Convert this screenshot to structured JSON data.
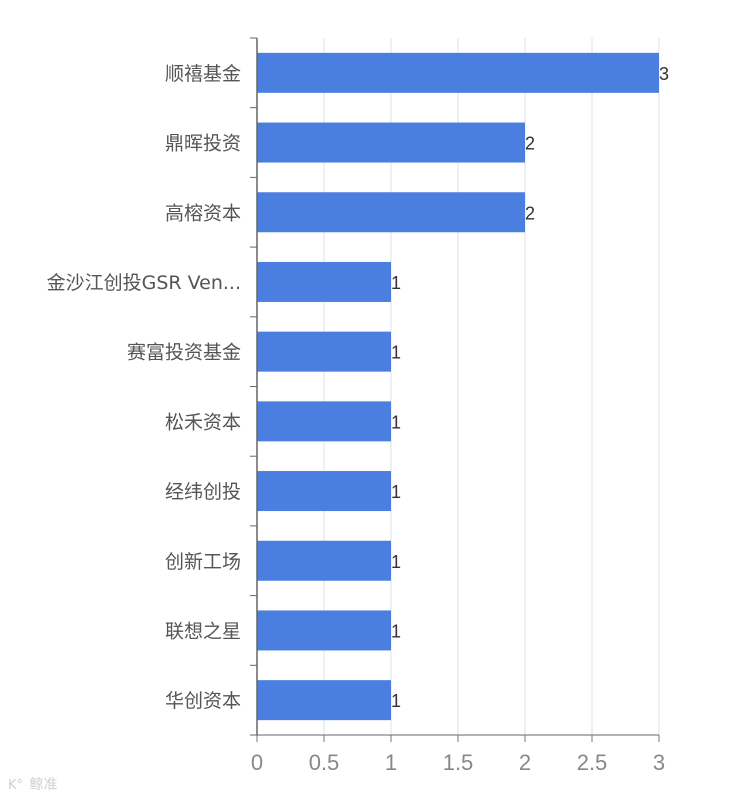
{
  "chart_data": {
    "type": "bar",
    "orientation": "horizontal",
    "categories": [
      "顺禧基金",
      "鼎晖投资",
      "高榕资本",
      "金沙江创投GSR Ven...",
      "赛富投资基金",
      "松禾资本",
      "经纬创投",
      "创新工场",
      "联想之星",
      "华创资本"
    ],
    "values": [
      3,
      2,
      2,
      1,
      1,
      1,
      1,
      1,
      1,
      1
    ],
    "xticks": [
      "0",
      "0.5",
      "1",
      "1.5",
      "2",
      "2.5",
      "3"
    ],
    "xlim": [
      0,
      3
    ],
    "grid": "vertical",
    "bar_color": "#4a7fe0",
    "title": "",
    "xlabel": "",
    "ylabel": ""
  },
  "watermark": {
    "text": "鲸准"
  }
}
